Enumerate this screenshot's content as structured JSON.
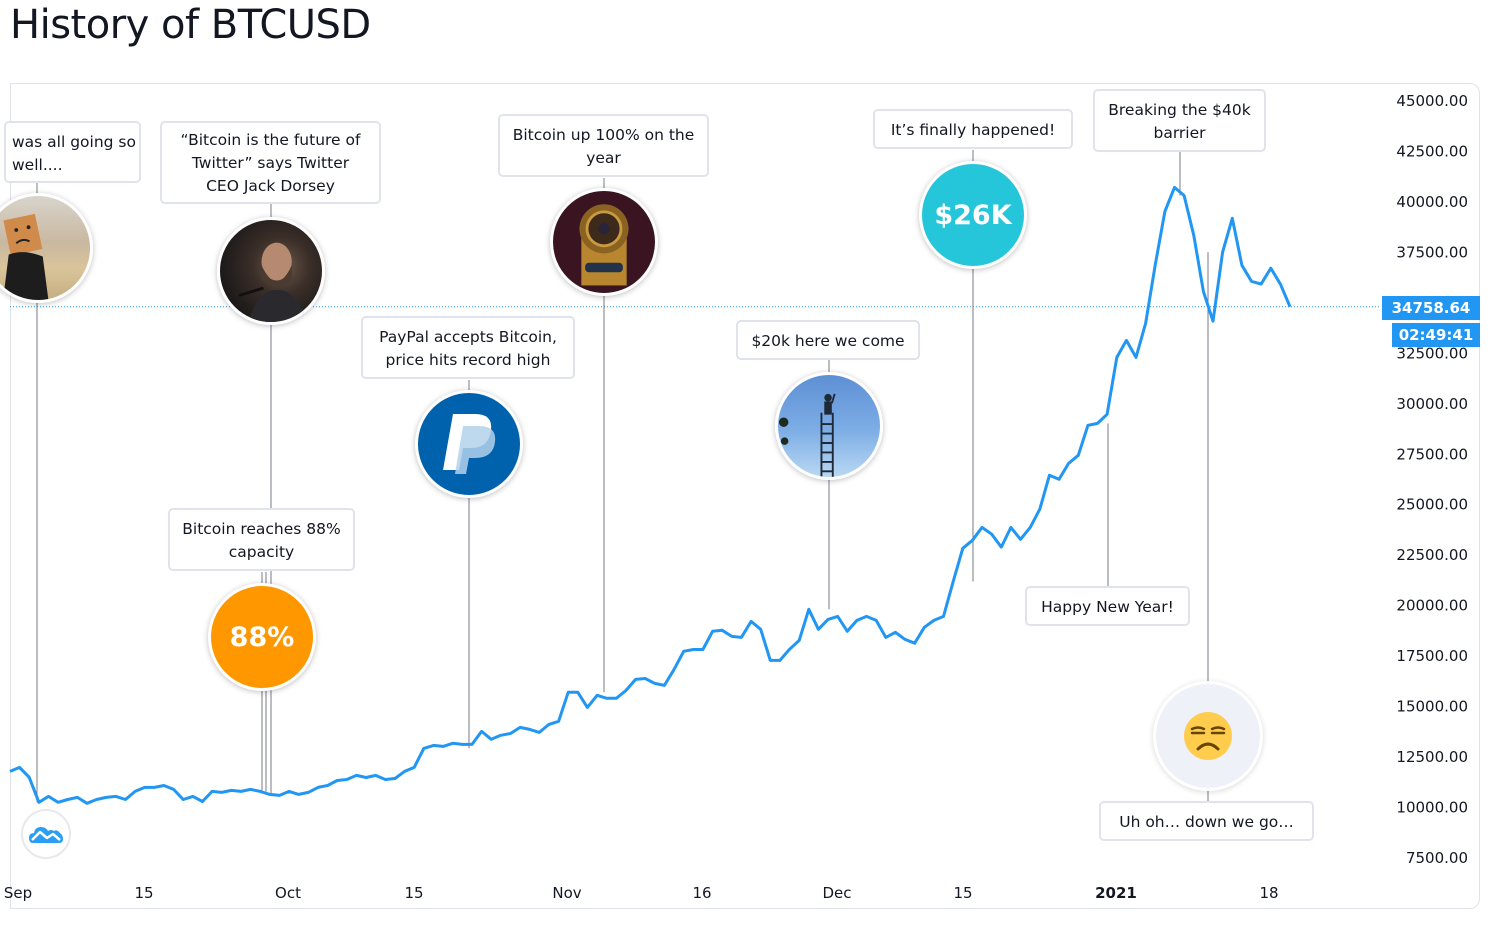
{
  "page": {
    "title": "History of BTCUSD"
  },
  "colors": {
    "line": "#2196f3",
    "price_tag": "#2196f3",
    "axis_text": "#131722",
    "callout_border": "#e0e3eb",
    "connector": "#787b86",
    "bubble_orange": "#ff9800",
    "bubble_teal": "#26c6da",
    "bubble_paypal": "#0061ad",
    "bubble_emoji_bg": "#eef1f8"
  },
  "price_scale": {
    "last_price": "34758.64",
    "countdown": "02:49:41"
  },
  "chart_data": {
    "type": "line",
    "title": "History of BTCUSD",
    "symbol": "BTCUSD",
    "xlabel": "",
    "ylabel": "",
    "ylim": [
      7500,
      45000
    ],
    "yticks": [
      "45000.00",
      "42500.00",
      "40000.00",
      "37500.00",
      "35000.00",
      "32500.00",
      "30000.00",
      "27500.00",
      "25000.00",
      "22500.00",
      "20000.00",
      "17500.00",
      "15000.00",
      "12500.00",
      "10000.00",
      "7500.00"
    ],
    "xticks": [
      {
        "label": "Sep",
        "bold": false
      },
      {
        "label": "15",
        "bold": false
      },
      {
        "label": "Oct",
        "bold": false
      },
      {
        "label": "15",
        "bold": false
      },
      {
        "label": "Nov",
        "bold": false
      },
      {
        "label": "16",
        "bold": false
      },
      {
        "label": "Dec",
        "bold": false
      },
      {
        "label": "15",
        "bold": false
      },
      {
        "label": "2021",
        "bold": true
      },
      {
        "label": "18",
        "bold": false
      }
    ],
    "grid": false,
    "legend": "none",
    "series": [
      {
        "name": "BTCUSD",
        "values": [
          11740,
          11940,
          11450,
          10210,
          10500,
          10210,
          10350,
          10450,
          10160,
          10350,
          10450,
          10500,
          10350,
          10750,
          10950,
          10950,
          11040,
          10850,
          10350,
          10500,
          10250,
          10750,
          10700,
          10800,
          10750,
          10850,
          10750,
          10600,
          10550,
          10750,
          10600,
          10700,
          10950,
          11040,
          11290,
          11340,
          11540,
          11440,
          11540,
          11340,
          11390,
          11740,
          11940,
          12880,
          13030,
          12980,
          13130,
          13080,
          13080,
          13720,
          13330,
          13530,
          13620,
          13920,
          13820,
          13670,
          14070,
          14220,
          15660,
          15660,
          14910,
          15510,
          15360,
          15360,
          15750,
          16300,
          16340,
          16100,
          16000,
          16800,
          17690,
          17780,
          17780,
          18680,
          18730,
          18430,
          18380,
          19170,
          18780,
          17240,
          17240,
          17790,
          18230,
          19770,
          18780,
          19270,
          19420,
          18680,
          19220,
          19420,
          19220,
          18380,
          18630,
          18280,
          18090,
          18880,
          19220,
          19420,
          21150,
          22790,
          23190,
          23830,
          23490,
          22850,
          23830,
          23240,
          23830,
          24730,
          26410,
          26210,
          27000,
          27400,
          28880,
          28980,
          29430,
          32250,
          33090,
          32250,
          33930,
          36850,
          39480,
          40670,
          40270,
          38290,
          35520,
          34040,
          37460,
          39140,
          36810,
          36020,
          35880,
          36670,
          35880,
          34758.64
        ]
      }
    ],
    "annotations": [
      {
        "label": "…was all going so well....",
        "text_line1": "was all going so",
        "text_line2": "well....",
        "kind": "image",
        "image": "paper-bag-person",
        "index": 3
      },
      {
        "label": "“Bitcoin is the future of Twitter” says Twitter CEO Jack Dorsey",
        "text_line1": "“Bitcoin is the future of",
        "text_line2": "Twitter” says Twitter",
        "text_line3": "CEO Jack Dorsey",
        "kind": "image",
        "image": "jack-dorsey-portrait",
        "index": 27
      },
      {
        "label": "Bitcoin reaches 88% capacity",
        "text_line1": "Bitcoin reaches 88%",
        "text_line2": "capacity",
        "kind": "text",
        "bubble_text": "88%",
        "index": 26
      },
      {
        "label": "PayPal accepts Bitcoin, price hits record high",
        "text_line1": "PayPal accepts Bitcoin,",
        "text_line2": "price hits record high",
        "kind": "logo",
        "image": "paypal-logo",
        "index": 43
      },
      {
        "label": "Bitcoin up 100% on the year",
        "text_line1": "Bitcoin up 100% on the",
        "text_line2": "year",
        "kind": "image",
        "image": "golden-throne",
        "index": 58
      },
      {
        "label": "$20k here we come",
        "text_line1": "$20k here we come",
        "kind": "image",
        "image": "person-on-ladder",
        "index": 83
      },
      {
        "label": "It’s finally happened!",
        "text_line1": "It’s finally happened!",
        "kind": "text",
        "bubble_text": "$26K",
        "index": 98
      },
      {
        "label": "Happy New Year!",
        "text_line1": "Happy New Year!",
        "kind": "none",
        "index": 113
      },
      {
        "label": "Breaking the $40k barrier",
        "text_line1": "Breaking the $40k",
        "text_line2": "barrier",
        "kind": "none",
        "index": 122
      },
      {
        "label": "Uh oh... down we go...",
        "text_line1": "Uh oh… down we go…",
        "kind": "emoji",
        "bubble_text": "😒",
        "index": 126
      }
    ]
  }
}
